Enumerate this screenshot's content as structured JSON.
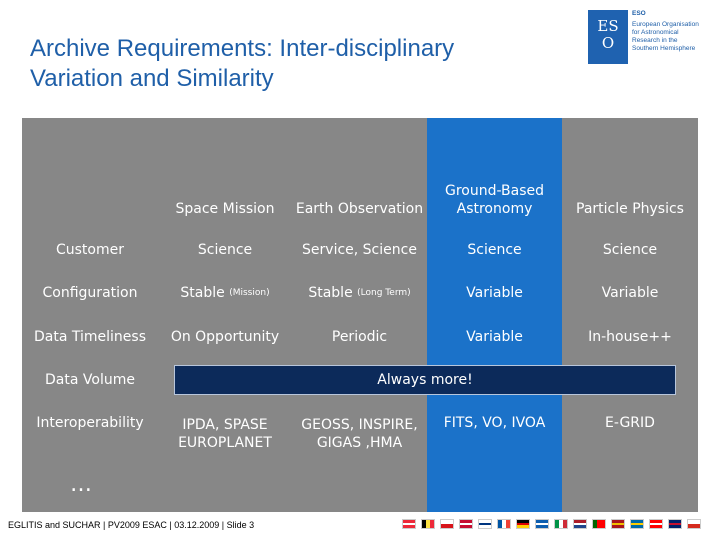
{
  "header": {
    "title_line1": "Archive Requirements: Inter-disciplinary",
    "title_line2": "Variation and Similarity"
  },
  "logo": {
    "glyph_line1": "ES",
    "glyph_line2": "O",
    "org_short": "ESO",
    "org_lines": [
      "European Organisation",
      "for Astronomical",
      "Research in the",
      "Southern Hemisphere"
    ]
  },
  "colors": {
    "gray": "#878787",
    "blue": "#1b72c9",
    "navy": "#0c2a5a",
    "title": "#1f5fa8"
  },
  "table": {
    "columns": [
      "Space Mission",
      "Earth Observation",
      "Ground-Based Astronomy",
      "Particle Physics"
    ],
    "rows": [
      {
        "label": "Customer",
        "cells": [
          "Science",
          "Service, Science",
          "Science",
          "Science"
        ]
      },
      {
        "label": "Configuration",
        "cells": [
          "Stable",
          "Stable",
          "Variable",
          "Variable"
        ],
        "notes": [
          "(Mission)",
          "(Long Term)",
          "",
          ""
        ]
      },
      {
        "label": "Data Timeliness",
        "cells": [
          "On Opportunity",
          "Periodic",
          "Variable",
          "In-house++"
        ]
      },
      {
        "label": "Data Volume",
        "span_text": "Always more!"
      },
      {
        "label": "Interoperability",
        "cells": [
          "IPDA, SPASE EUROPLANET",
          "GEOSS, INSPIRE, GIGAS ,HMA",
          "FITS, VO, IVOA",
          "E-GRID"
        ]
      }
    ],
    "ellipsis": "…"
  },
  "footer": {
    "text": "EGLITIS and SUCHAR | PV2009 ESAC | 03.12.2009 | Slide 3"
  },
  "flags": [
    {
      "name": "austria",
      "dir": "h",
      "colors": [
        "#ed2939",
        "#ffffff",
        "#ed2939"
      ]
    },
    {
      "name": "belgium",
      "dir": "v",
      "colors": [
        "#000000",
        "#fae042",
        "#ed2939"
      ]
    },
    {
      "name": "czech",
      "dir": "h",
      "colors": [
        "#ffffff",
        "#d7141a"
      ]
    },
    {
      "name": "denmark",
      "dir": "h",
      "colors": [
        "#c60c30",
        "#ffffff",
        "#c60c30"
      ]
    },
    {
      "name": "finland",
      "dir": "h",
      "colors": [
        "#ffffff",
        "#003580",
        "#ffffff"
      ]
    },
    {
      "name": "france",
      "dir": "v",
      "colors": [
        "#0055a4",
        "#ffffff",
        "#ef4135"
      ]
    },
    {
      "name": "germany",
      "dir": "h",
      "colors": [
        "#000000",
        "#dd0000",
        "#ffce00"
      ]
    },
    {
      "name": "greece",
      "dir": "h",
      "colors": [
        "#0d5eaf",
        "#ffffff",
        "#0d5eaf"
      ]
    },
    {
      "name": "italy",
      "dir": "v",
      "colors": [
        "#009246",
        "#ffffff",
        "#ce2b37"
      ]
    },
    {
      "name": "netherlands",
      "dir": "h",
      "colors": [
        "#ae1c28",
        "#ffffff",
        "#21468b"
      ]
    },
    {
      "name": "portugal",
      "dir": "v",
      "colors": [
        "#006600",
        "#ff0000",
        "#ff0000"
      ]
    },
    {
      "name": "spain",
      "dir": "h",
      "colors": [
        "#aa151b",
        "#f1bf00",
        "#aa151b"
      ]
    },
    {
      "name": "sweden",
      "dir": "h",
      "colors": [
        "#006aa7",
        "#fecc00",
        "#006aa7"
      ]
    },
    {
      "name": "switzerland",
      "dir": "h",
      "colors": [
        "#ff0000",
        "#ffffff",
        "#ff0000"
      ]
    },
    {
      "name": "uk",
      "dir": "h",
      "colors": [
        "#012169",
        "#c8102e",
        "#012169"
      ]
    },
    {
      "name": "chile",
      "dir": "h",
      "colors": [
        "#ffffff",
        "#d52b1e"
      ]
    }
  ]
}
